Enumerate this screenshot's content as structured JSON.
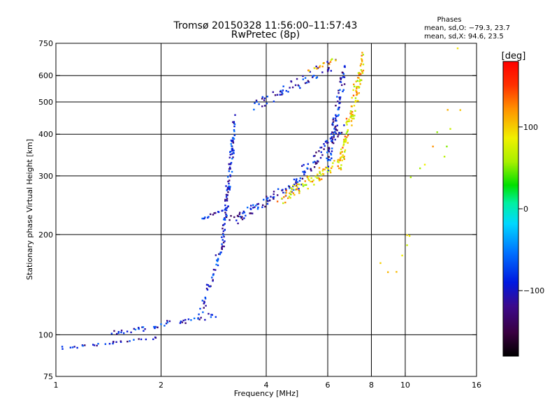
{
  "chart_data": {
    "type": "scatter",
    "title": "Tromsø 20150328 11:56:00–11:57:43",
    "subtitle": "RwPretec (8p)",
    "xlabel": "Frequency [MHz]",
    "ylabel": "Stationary phase Virtual Height [km]",
    "x_scale": "log",
    "y_scale": "log",
    "xlim": [
      1,
      16
    ],
    "ylim": [
      75,
      750
    ],
    "grid": true,
    "x_ticks": [
      1,
      2,
      4,
      6,
      8,
      10,
      16
    ],
    "y_ticks": [
      75,
      100,
      200,
      300,
      400,
      500,
      600,
      750
    ],
    "x_grid": [
      2,
      4,
      6,
      8,
      10
    ],
    "y_grid": [
      100,
      200,
      300,
      400,
      500,
      600
    ],
    "phase_stats": {
      "heading": "Phases",
      "o_line": "mean, sd,O: −79.3, 23.7",
      "x_line": "mean, sd,X:  94.6, 23.5"
    },
    "colorbar": {
      "label": "[deg]",
      "range": [
        -180,
        180
      ],
      "ticks": [
        100,
        0,
        -100
      ],
      "tick_labels": [
        "100",
        "0",
        "−100"
      ]
    },
    "series": [
      {
        "mode": "O",
        "color_value": -95,
        "traces": [
          {
            "x_range": [
              1.03,
              1.9
            ],
            "y_range": [
              91,
              98
            ],
            "count": 30
          },
          {
            "x_range": [
              1.45,
              2.8
            ],
            "y_range": [
              100,
              115
            ],
            "count": 50
          },
          {
            "x_range": [
              2.6,
              3.0
            ],
            "y_range": [
              115,
              190
            ],
            "count": 40
          },
          {
            "x_range": [
              3.0,
              3.25
            ],
            "y_range": [
              190,
              430
            ],
            "count": 110
          },
          {
            "x_range": [
              2.6,
              3.05
            ],
            "y_range": [
              222,
              238
            ],
            "count": 15
          },
          {
            "x_range": [
              3.2,
              4.8
            ],
            "y_range": [
              220,
              280
            ],
            "count": 70
          },
          {
            "x_range": [
              4.8,
              6.6
            ],
            "y_range": [
              280,
              420
            ],
            "count": 70
          },
          {
            "x_range": [
              6.0,
              6.7
            ],
            "y_range": [
              330,
              620
            ],
            "count": 80
          },
          {
            "x_range": [
              3.7,
              6.2
            ],
            "y_range": [
              480,
              650
            ],
            "count": 60
          }
        ]
      },
      {
        "mode": "X",
        "color_value": 95,
        "traces": [
          {
            "x_range": [
              4.4,
              6.5
            ],
            "y_range": [
              255,
              330
            ],
            "count": 80
          },
          {
            "x_range": [
              6.5,
              7.6
            ],
            "y_range": [
              330,
              660
            ],
            "count": 120
          },
          {
            "x_range": [
              5.3,
              6.3
            ],
            "y_range": [
              620,
              670
            ],
            "count": 15
          },
          {
            "x_range": [
              8.7,
              14.5
            ],
            "y_range": [
              140,
              610
            ],
            "count": 18
          }
        ]
      }
    ]
  }
}
